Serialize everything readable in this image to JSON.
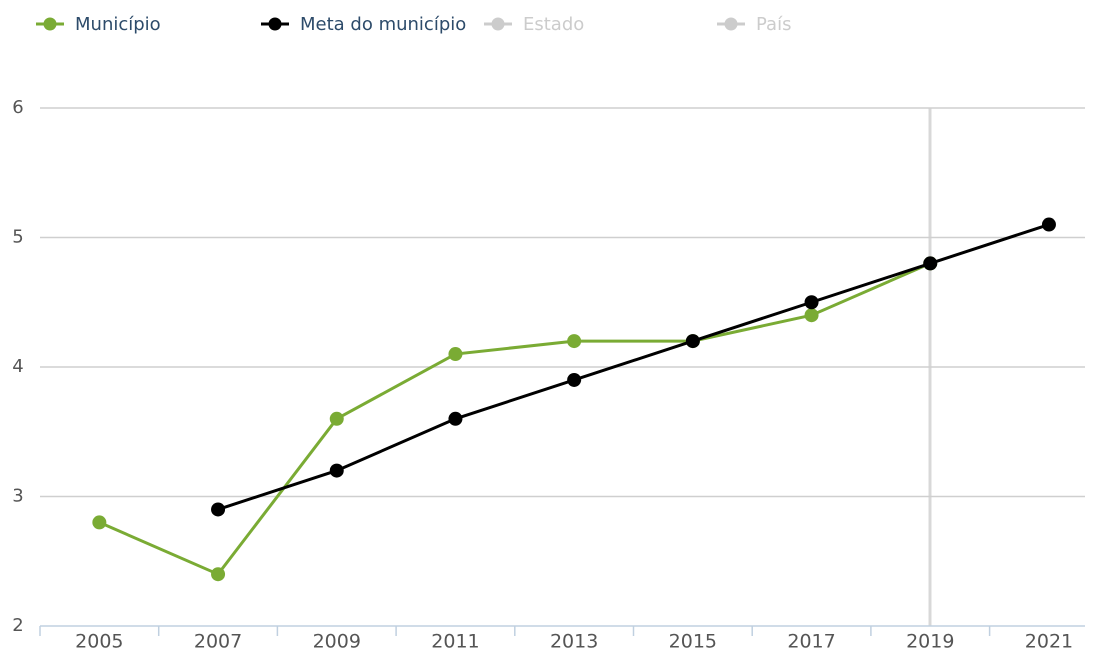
{
  "chart_data": {
    "type": "line",
    "categories": [
      "2005",
      "2007",
      "2009",
      "2011",
      "2013",
      "2015",
      "2017",
      "2019",
      "2021"
    ],
    "series": [
      {
        "name": "Município",
        "color": "#7aab34",
        "visible": true,
        "values": [
          2.8,
          2.4,
          3.6,
          4.1,
          4.2,
          4.2,
          4.4,
          4.8,
          null
        ]
      },
      {
        "name": "Meta do município",
        "color": "#000000",
        "visible": true,
        "values": [
          null,
          2.9,
          3.2,
          3.6,
          3.9,
          4.2,
          4.5,
          4.8,
          5.1
        ]
      },
      {
        "name": "Estado",
        "color": "#cccccc",
        "visible": false,
        "values": [
          null,
          null,
          null,
          null,
          null,
          null,
          null,
          null,
          null
        ]
      },
      {
        "name": "País",
        "color": "#cccccc",
        "visible": false,
        "values": [
          null,
          null,
          null,
          null,
          null,
          null,
          null,
          null,
          null
        ]
      }
    ],
    "ylim": [
      2,
      6
    ],
    "yticks": [
      2,
      3,
      4,
      5,
      6
    ],
    "grid": true,
    "legend": "top-left"
  }
}
